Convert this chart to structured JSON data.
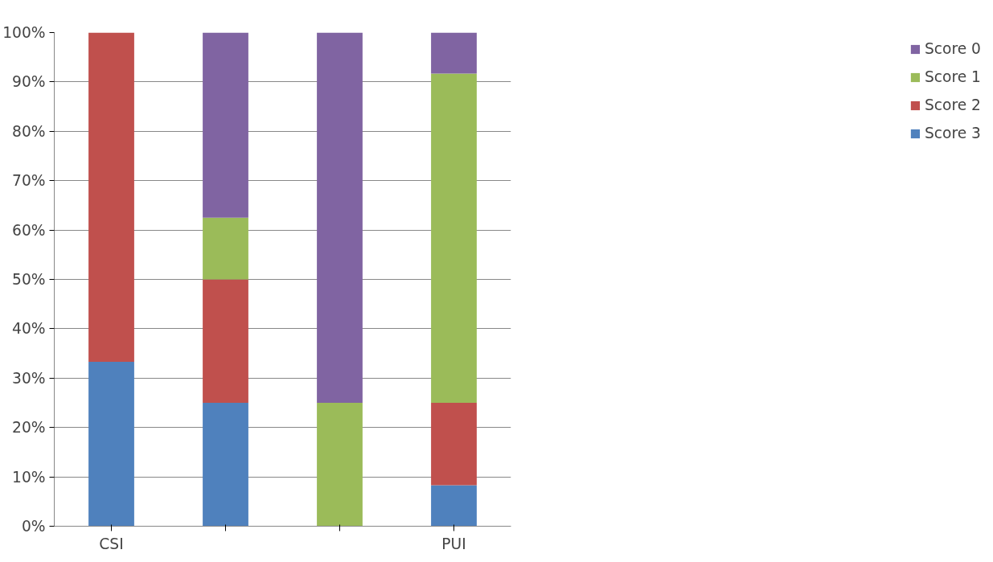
{
  "chart_data": {
    "type": "bar",
    "stacked": true,
    "categories": [
      "CSI",
      null,
      null,
      "PUI"
    ],
    "series": [
      {
        "name": "Score 3",
        "color": "#4f81bd",
        "values": [
          33.3,
          25,
          0,
          8.3
        ]
      },
      {
        "name": "Score 2",
        "color": "#c0504d",
        "values": [
          66.7,
          25,
          0,
          16.7
        ]
      },
      {
        "name": "Score 1",
        "color": "#9bbb59",
        "values": [
          0,
          12.5,
          25,
          66.7
        ]
      },
      {
        "name": "Score 0",
        "color": "#8064a2",
        "values": [
          0,
          37.5,
          75,
          8.3
        ]
      }
    ],
    "ylim": [
      0,
      100
    ],
    "yticks": [
      {
        "value": 0,
        "label": "0%"
      },
      {
        "value": 10,
        "label": "10%"
      },
      {
        "value": 20,
        "label": "20%"
      },
      {
        "value": 30,
        "label": "30%"
      },
      {
        "value": 40,
        "label": "40%"
      },
      {
        "value": 50,
        "label": "50%"
      },
      {
        "value": 60,
        "label": "60%"
      },
      {
        "value": 70,
        "label": "70%"
      },
      {
        "value": 80,
        "label": "80%"
      },
      {
        "value": 90,
        "label": "90%"
      },
      {
        "value": 100,
        "label": "100%"
      }
    ],
    "grid": "y",
    "legend": "right"
  }
}
